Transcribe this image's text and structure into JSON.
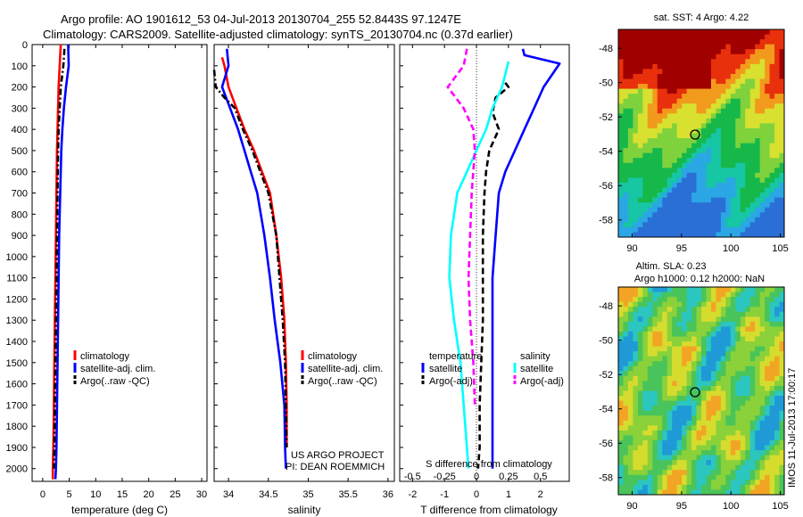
{
  "header": {
    "line1": "Argo profile: AO 1901612_53 04-Jul-2013 20130704_255 52.8443S 97.1247E",
    "line2": "Climatology: CARS2009. Satellite-adjusted climatology: synTS_20130704.nc (0.37d earlier)"
  },
  "colors": {
    "climatology": "#ff0000",
    "satellite": "#0000ff",
    "argo": "#000000",
    "s_satellite": "#00ffff",
    "s_argo": "#ff00ff"
  },
  "chart_data": [
    {
      "type": "line",
      "xlabel": "temperature (deg C)",
      "xticks": [
        "0",
        "5",
        "10",
        "15",
        "20",
        "25",
        "30"
      ],
      "xlim": [
        -2,
        31
      ],
      "yticks": [
        "0",
        "100",
        "200",
        "300",
        "400",
        "500",
        "600",
        "700",
        "800",
        "900",
        "1000",
        "1100",
        "1200",
        "1300",
        "1400",
        "1500",
        "1600",
        "1700",
        "1800",
        "1900",
        "2000"
      ],
      "ylim": [
        0,
        2060
      ],
      "legend": [
        "climatology",
        "satellite-adj. clim.",
        "Argo(..raw -QC)"
      ],
      "series": [
        {
          "name": "climatology",
          "style": "solid",
          "color": "#ff0000",
          "x": [
            3.4,
            3.2,
            3.0,
            2.9,
            2.8,
            2.7,
            2.6,
            2.5,
            2.4,
            2.3,
            2.2,
            2.1,
            2.0,
            1.9,
            1.9
          ],
          "y": [
            0,
            100,
            200,
            300,
            400,
            500,
            700,
            900,
            1100,
            1300,
            1500,
            1700,
            1900,
            2000,
            2050
          ]
        },
        {
          "name": "satellite-adj. clim.",
          "style": "solid",
          "color": "#0000ff",
          "x": [
            4.8,
            4.9,
            4.4,
            4.0,
            3.7,
            3.5,
            3.3,
            3.1,
            3.0,
            2.9,
            2.8,
            2.7,
            2.6,
            2.5,
            2.4
          ],
          "y": [
            0,
            100,
            200,
            300,
            400,
            500,
            700,
            900,
            1100,
            1300,
            1500,
            1700,
            1900,
            2000,
            2050
          ]
        },
        {
          "name": "Argo(..raw -QC)",
          "style": "dashdot",
          "color": "#000000",
          "x": [
            4.1,
            3.9,
            3.4,
            3.2,
            3.0,
            2.9,
            2.8,
            2.7,
            2.6,
            2.5,
            2.4,
            2.3,
            2.2,
            2.1
          ],
          "y": [
            20,
            100,
            200,
            300,
            400,
            500,
            700,
            900,
            1100,
            1300,
            1500,
            1700,
            1900,
            2000
          ]
        }
      ]
    },
    {
      "type": "line",
      "xlabel": "salinity",
      "xticks": [
        "34",
        "34.5",
        "35",
        "35.5",
        "36"
      ],
      "xlim": [
        33.82,
        36.08
      ],
      "yticks": [],
      "ylim": [
        0,
        2060
      ],
      "legend": [
        "climatology",
        "satellite-adj. clim.",
        "Argo(..raw -QC)"
      ],
      "annotation": [
        "US ARGO PROJECT",
        "PI: DEAN ROEMMICH"
      ],
      "series": [
        {
          "name": "climatology",
          "style": "solid",
          "color": "#ff0000",
          "x": [
            33.92,
            33.95,
            34.0,
            34.1,
            34.2,
            34.32,
            34.42,
            34.52,
            34.6,
            34.66,
            34.7,
            34.72,
            34.73,
            34.73
          ],
          "y": [
            60,
            100,
            200,
            300,
            400,
            500,
            600,
            700,
            900,
            1100,
            1300,
            1500,
            1700,
            1900
          ]
        },
        {
          "name": "satellite-adj. clim.",
          "style": "solid",
          "color": "#0000ff",
          "x": [
            33.98,
            34.0,
            33.92,
            34.02,
            34.12,
            34.2,
            34.28,
            34.36,
            34.45,
            34.52,
            34.58,
            34.65,
            34.7,
            34.71,
            34.72
          ],
          "y": [
            20,
            100,
            200,
            300,
            400,
            500,
            600,
            700,
            900,
            1100,
            1300,
            1500,
            1700,
            1900,
            2000
          ]
        },
        {
          "name": "Argo(..raw -QC)",
          "style": "dashdot",
          "color": "#000000",
          "x": [
            33.82,
            33.84,
            33.95,
            34.08,
            34.18,
            34.3,
            34.4,
            34.5,
            34.6,
            34.64,
            34.68,
            34.71,
            34.72,
            34.73
          ],
          "y": [
            120,
            200,
            250,
            300,
            400,
            500,
            600,
            700,
            900,
            1100,
            1300,
            1500,
            1700,
            1900
          ]
        }
      ]
    },
    {
      "type": "line",
      "xlabel": "T difference from climatology",
      "x2label": "S difference from climatology",
      "xticks": [
        "-2",
        "-1",
        "0",
        "1",
        "2"
      ],
      "x2ticks": [
        "-0.5",
        "-0.25",
        "0",
        "0.25",
        "0.5"
      ],
      "xlim": [
        -2.4,
        2.9
      ],
      "yticks": [],
      "ylim": [
        0,
        2060
      ],
      "legend_titles": [
        "temperature",
        "salinity"
      ],
      "legend": [
        "satellite",
        "Argo(-adj)",
        "satellite",
        "Argo(-adj)"
      ],
      "series": [
        {
          "name": "satellite",
          "style": "solid",
          "color": "#0000ff",
          "x": [
            1.45,
            1.5,
            2.6,
            2.1,
            1.8,
            1.5,
            1.2,
            0.9,
            0.7,
            0.6,
            0.5,
            0.5,
            0.5,
            0.5,
            0.5,
            0.5
          ],
          "y": [
            20,
            50,
            90,
            200,
            300,
            400,
            500,
            600,
            700,
            900,
            1100,
            1300,
            1500,
            1700,
            1900,
            2000
          ]
        },
        {
          "name": "Argo(-adj)",
          "style": "dashed",
          "color": "#000000",
          "x": [
            0.9,
            1.0,
            0.6,
            0.5,
            0.7,
            0.4,
            0.3,
            0.25,
            0.2,
            0.2,
            0.2,
            0.15,
            0.1,
            0.1,
            0.05
          ],
          "y": [
            180,
            200,
            250,
            320,
            400,
            500,
            600,
            700,
            900,
            1100,
            1300,
            1500,
            1700,
            1900,
            2000
          ]
        },
        {
          "name": "satellite",
          "style": "solid",
          "color": "#00ffff",
          "x": [
            1.0,
            0.8,
            0.5,
            0.3,
            0.0,
            -0.3,
            -0.6,
            -0.8,
            -0.85,
            -0.7,
            -0.5,
            -0.4,
            -0.3,
            -0.25
          ],
          "y": [
            80,
            200,
            300,
            400,
            500,
            600,
            700,
            900,
            1100,
            1300,
            1500,
            1700,
            1900,
            2000
          ]
        },
        {
          "name": "Argo(-adj)",
          "style": "dashed",
          "color": "#ff00ff",
          "x": [
            -0.3,
            -0.4,
            -0.9,
            -0.4,
            -0.1,
            -0.05,
            -0.15,
            -0.2,
            -0.25,
            -0.2,
            -0.1,
            -0.05
          ],
          "y": [
            20,
            100,
            200,
            300,
            400,
            500,
            700,
            900,
            1100,
            1300,
            1500,
            1700
          ]
        }
      ]
    }
  ],
  "maps": [
    {
      "title": "sat. SST: 4 Argo: 4.22",
      "xticks": [
        "90",
        "95",
        "100",
        "105"
      ],
      "yticks": [
        "-48",
        "-50",
        "-52",
        "-54",
        "-56",
        "-58"
      ]
    },
    {
      "title1": "Altim. SLA: 0.23",
      "title2": "Argo h1000: 0.12 h2000: NaN",
      "xticks": [
        "90",
        "95",
        "100",
        "105"
      ],
      "yticks": [
        "-48",
        "-50",
        "-52",
        "-54",
        "-56",
        "-58"
      ]
    }
  ],
  "footer": {
    "side_text": "IMOS 11-Jul-2013 17:00:17"
  }
}
